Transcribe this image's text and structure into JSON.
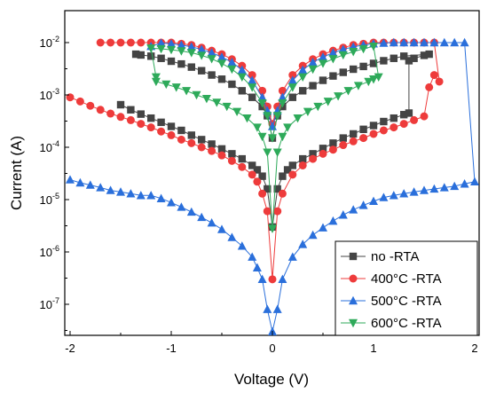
{
  "chart_data": {
    "type": "scatter",
    "title": "",
    "xlabel": "Voltage (V)",
    "ylabel": "Current (A)",
    "xlim": [
      -2.05,
      2.05
    ],
    "ylim_log10": [
      -7.5,
      -1.6
    ],
    "log_y": true,
    "grid": false,
    "legend_position": "bottom-right",
    "x_ticks": [
      {
        "value": -2,
        "label": "-2"
      },
      {
        "value": -1,
        "label": "-1"
      },
      {
        "value": 0,
        "label": "0"
      },
      {
        "value": 1,
        "label": "1"
      },
      {
        "value": 2,
        "label": "2"
      }
    ],
    "y_ticks": [
      {
        "exp": -7,
        "base": "10",
        "sup": "-7"
      },
      {
        "exp": -6,
        "base": "10",
        "sup": "-6"
      },
      {
        "exp": -5,
        "base": "10",
        "sup": "-5"
      },
      {
        "exp": -4,
        "base": "10",
        "sup": "-4"
      },
      {
        "exp": -3,
        "base": "10",
        "sup": "-3"
      },
      {
        "exp": -2,
        "base": "10",
        "sup": "-2"
      }
    ],
    "series": [
      {
        "name": "no -RTA",
        "color": "#444444",
        "marker": "square",
        "x": [
          -1.5,
          -1.4,
          -1.3,
          -1.2,
          -1.1,
          -1.0,
          -0.9,
          -0.8,
          -0.7,
          -0.6,
          -0.5,
          -0.4,
          -0.3,
          -0.2,
          -0.15,
          -0.1,
          -0.05,
          0,
          0.05,
          0.1,
          0.15,
          0.2,
          0.3,
          0.4,
          0.5,
          0.6,
          0.7,
          0.8,
          0.9,
          1.0,
          1.1,
          1.2,
          1.3,
          1.35,
          1.35,
          1.4,
          1.5,
          1.55,
          1.3,
          1.2,
          1.1,
          1.0,
          0.9,
          0.8,
          0.7,
          0.6,
          0.5,
          0.4,
          0.3,
          0.2,
          0.1,
          0.05,
          0,
          -0.05,
          -0.1,
          -0.2,
          -0.3,
          -0.4,
          -0.5,
          -0.6,
          -0.7,
          -0.8,
          -0.9,
          -1.0,
          -1.1,
          -1.2,
          -1.3,
          -1.35
        ],
        "y": [
          0.00065,
          0.00052,
          0.00043,
          0.00036,
          0.0003,
          0.00025,
          0.00021,
          0.00017,
          0.00014,
          0.000115,
          9.3e-05,
          7.5e-05,
          6e-05,
          4.5e-05,
          3.7e-05,
          2.8e-05,
          1.6e-05,
          3e-06,
          1.6e-05,
          2.8e-05,
          3.7e-05,
          4.5e-05,
          6e-05,
          7.5e-05,
          9.5e-05,
          0.00012,
          0.00015,
          0.00018,
          0.00022,
          0.00026,
          0.00031,
          0.00036,
          0.00042,
          0.00045,
          0.0045,
          0.005,
          0.0057,
          0.006,
          0.0055,
          0.005,
          0.0045,
          0.004,
          0.0035,
          0.0031,
          0.0027,
          0.0023,
          0.0019,
          0.0015,
          0.0012,
          0.0009,
          0.0006,
          0.0004,
          0.00015,
          0.0004,
          0.0006,
          0.0009,
          0.0012,
          0.0016,
          0.002,
          0.0024,
          0.0029,
          0.0034,
          0.0039,
          0.0044,
          0.005,
          0.0055,
          0.0058,
          0.006
        ]
      },
      {
        "name": "400°C -RTA",
        "color": "#ee3b3b",
        "marker": "circle",
        "x": [
          -2.0,
          -1.9,
          -1.8,
          -1.7,
          -1.6,
          -1.5,
          -1.4,
          -1.3,
          -1.2,
          -1.1,
          -1.0,
          -0.9,
          -0.8,
          -0.7,
          -0.6,
          -0.5,
          -0.4,
          -0.3,
          -0.2,
          -0.15,
          -0.1,
          -0.05,
          0,
          0.05,
          0.1,
          0.2,
          0.3,
          0.4,
          0.5,
          0.6,
          0.7,
          0.8,
          0.9,
          1.0,
          1.1,
          1.2,
          1.3,
          1.4,
          1.5,
          1.55,
          1.6,
          1.65,
          1.6,
          1.5,
          1.4,
          1.3,
          1.2,
          1.1,
          1.0,
          0.9,
          0.8,
          0.7,
          0.6,
          0.5,
          0.4,
          0.3,
          0.2,
          0.1,
          0.05,
          0,
          -0.05,
          -0.1,
          -0.2,
          -0.3,
          -0.4,
          -0.5,
          -0.6,
          -0.7,
          -0.8,
          -0.9,
          -1.0,
          -1.1,
          -1.2,
          -1.3,
          -1.4,
          -1.5,
          -1.6,
          -1.7
        ],
        "y": [
          0.0009,
          0.00075,
          0.00062,
          0.00052,
          0.00044,
          0.00038,
          0.00033,
          0.00028,
          0.00024,
          0.0002,
          0.00017,
          0.00014,
          0.00012,
          0.0001,
          8.5e-05,
          7e-05,
          5.5e-05,
          4.2e-05,
          3e-05,
          2.2e-05,
          1.3e-05,
          6e-06,
          3e-07,
          6e-06,
          1.3e-05,
          3e-05,
          4.5e-05,
          6e-05,
          7.5e-05,
          9e-05,
          0.00011,
          0.00013,
          0.00015,
          0.00018,
          0.00021,
          0.00024,
          0.00028,
          0.00033,
          0.00039,
          0.0014,
          0.0024,
          0.0018,
          0.01,
          0.01,
          0.01,
          0.01,
          0.01,
          0.01,
          0.01,
          0.0095,
          0.009,
          0.008,
          0.007,
          0.006,
          0.0048,
          0.0036,
          0.0024,
          0.0012,
          0.0006,
          0.00028,
          0.0006,
          0.0012,
          0.0024,
          0.0036,
          0.0048,
          0.006,
          0.007,
          0.008,
          0.009,
          0.0095,
          0.01,
          0.01,
          0.01,
          0.01,
          0.01,
          0.01,
          0.01,
          0.01
        ]
      },
      {
        "name": "500°C -RTA",
        "color": "#2a6fdb",
        "marker": "triangle-up",
        "x": [
          -2.0,
          -1.9,
          -1.8,
          -1.7,
          -1.6,
          -1.5,
          -1.4,
          -1.3,
          -1.2,
          -1.1,
          -1.0,
          -0.9,
          -0.8,
          -0.7,
          -0.6,
          -0.5,
          -0.4,
          -0.3,
          -0.2,
          -0.15,
          -0.1,
          -0.05,
          0,
          0.05,
          0.1,
          0.2,
          0.3,
          0.4,
          0.5,
          0.6,
          0.7,
          0.8,
          0.9,
          1.0,
          1.1,
          1.2,
          1.3,
          1.4,
          1.5,
          1.6,
          1.7,
          1.8,
          1.9,
          2.0,
          1.9,
          1.8,
          1.7,
          1.6,
          1.5,
          1.4,
          1.3,
          1.2,
          1.1,
          1.0,
          0.9,
          0.8,
          0.7,
          0.6,
          0.5,
          0.4,
          0.3,
          0.2,
          0.1,
          0.05,
          0,
          -0.05,
          -0.1,
          -0.2,
          -0.3,
          -0.4,
          -0.5,
          -0.6,
          -0.7,
          -0.8,
          -0.9,
          -1.0,
          -1.1,
          -1.2
        ],
        "y": [
          2.4e-05,
          2.1e-05,
          1.9e-05,
          1.7e-05,
          1.5e-05,
          1.4e-05,
          1.3e-05,
          1.2e-05,
          1.2e-05,
          1.05e-05,
          8.8e-06,
          7.2e-06,
          5.8e-06,
          4.6e-06,
          3.6e-06,
          2.7e-06,
          1.9e-06,
          1.3e-06,
          8e-07,
          5e-07,
          3e-07,
          8e-08,
          3e-08,
          8e-08,
          3e-07,
          8e-07,
          1.4e-06,
          2.1e-06,
          2.9e-06,
          3.9e-06,
          5.1e-06,
          6.4e-06,
          7.8e-06,
          9.3e-06,
          1.1e-05,
          1.2e-05,
          1.3e-05,
          1.4e-05,
          1.5e-05,
          1.6e-05,
          1.7e-05,
          1.8e-05,
          2e-05,
          2.2e-05,
          0.01,
          0.01,
          0.01,
          0.01,
          0.01,
          0.01,
          0.01,
          0.01,
          0.0098,
          0.0095,
          0.009,
          0.0083,
          0.0074,
          0.0064,
          0.0053,
          0.0042,
          0.003,
          0.0019,
          0.0009,
          0.0005,
          0.00025,
          0.0005,
          0.0009,
          0.0019,
          0.003,
          0.0042,
          0.0053,
          0.0064,
          0.0074,
          0.0083,
          0.009,
          0.0095,
          0.0098,
          0.0085
        ]
      },
      {
        "name": "600°C -RTA",
        "color": "#2eaa5a",
        "marker": "triangle-down",
        "x": [
          -1.15,
          -1.05,
          -0.95,
          -0.85,
          -0.75,
          -0.65,
          -0.55,
          -0.45,
          -0.35,
          -0.25,
          -0.15,
          -0.1,
          -0.05,
          0,
          0.05,
          0.1,
          0.15,
          0.25,
          0.35,
          0.45,
          0.55,
          0.65,
          0.75,
          0.85,
          0.95,
          1.0,
          1.05,
          1.0,
          0.9,
          0.8,
          0.7,
          0.6,
          0.5,
          0.4,
          0.3,
          0.2,
          0.1,
          0.05,
          0,
          -0.05,
          -0.1,
          -0.2,
          -0.3,
          -0.4,
          -0.5,
          -0.6,
          -0.7,
          -0.8,
          -0.9,
          -1.0,
          -1.1,
          -1.2,
          -1.15
        ],
        "y": [
          0.0018,
          0.0016,
          0.0014,
          0.0012,
          0.001,
          0.00085,
          0.00072,
          0.0006,
          0.00048,
          0.00036,
          0.00024,
          0.00016,
          8e-05,
          2.8e-06,
          8e-05,
          0.00016,
          0.00024,
          0.00036,
          0.00048,
          0.0006,
          0.00075,
          0.00095,
          0.0012,
          0.0015,
          0.0018,
          0.002,
          0.0022,
          0.0085,
          0.0076,
          0.0067,
          0.0058,
          0.0049,
          0.004,
          0.0031,
          0.0022,
          0.0014,
          0.0007,
          0.0004,
          0.00015,
          0.0004,
          0.0007,
          0.0014,
          0.0022,
          0.0031,
          0.004,
          0.0049,
          0.0057,
          0.0064,
          0.0069,
          0.0073,
          0.0076,
          0.0078,
          0.0022
        ]
      }
    ]
  }
}
